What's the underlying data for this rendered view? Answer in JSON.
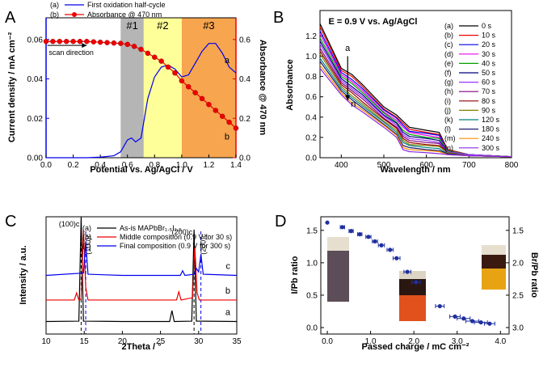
{
  "chart_data": [
    {
      "type": "line",
      "panel_label": "A",
      "xlabel": "Potential vs. Ag/AgCl / V",
      "ylabel": "Current density / mA cm⁻²",
      "y2label": "Absorbance @ 470 nm",
      "xlim": [
        0,
        1.4
      ],
      "ylim": [
        0,
        0.071
      ],
      "y2lim": [
        0,
        0.71
      ],
      "xticks": [
        {
          "value": 0,
          "label": "0.0"
        },
        0.2,
        0.4,
        0.6,
        0.8,
        {
          "value": 1,
          "label": "1.0"
        },
        1.2,
        1.4
      ],
      "yticks": [
        {
          "value": 0,
          "label": "0.00"
        },
        {
          "value": 0.02,
          "label": "0.02"
        },
        {
          "value": 0.04,
          "label": "0.04"
        },
        {
          "value": 0.06,
          "label": "0.06"
        }
      ],
      "y2ticks": [
        {
          "value": 0,
          "label": "0.0"
        },
        0.2,
        0.4,
        0.6
      ],
      "regions": [
        {
          "label": "#1",
          "from": 0.55,
          "to": 0.72,
          "color": "#b5b5b5"
        },
        {
          "label": "#2",
          "from": 0.72,
          "to": 1.0,
          "color": "#ffff99"
        },
        {
          "label": "#3",
          "from": 1.0,
          "to": 1.4,
          "color": "#f7a54f"
        }
      ],
      "annotations": [
        "scan direction"
      ],
      "series": [
        {
          "name": "First oxidation half-cycle",
          "label": "(a)",
          "curve_label": "a",
          "color": "#0000ee",
          "axis": "y",
          "x": [
            0,
            0.1,
            0.2,
            0.3,
            0.4,
            0.5,
            0.55,
            0.6,
            0.63,
            0.66,
            0.7,
            0.75,
            0.8,
            0.85,
            0.9,
            0.95,
            1.0,
            1.05,
            1.1,
            1.15,
            1.2,
            1.25,
            1.3,
            1.35,
            1.4
          ],
          "values": [
            0,
            0,
            0,
            0,
            0.0003,
            0.001,
            0.003,
            0.009,
            0.01,
            0.008,
            0.01,
            0.03,
            0.041,
            0.046,
            0.047,
            0.045,
            0.041,
            0.042,
            0.048,
            0.054,
            0.058,
            0.058,
            0.053,
            0.046,
            0.043
          ]
        },
        {
          "name": "Absorbance @ 470 nm",
          "label": "(b)",
          "curve_label": "b",
          "color": "#ee0000",
          "axis": "y2",
          "marker": "circle",
          "x": [
            0,
            0.05,
            0.1,
            0.15,
            0.2,
            0.25,
            0.3,
            0.35,
            0.4,
            0.45,
            0.5,
            0.55,
            0.6,
            0.65,
            0.7,
            0.75,
            0.8,
            0.85,
            0.9,
            0.95,
            1.0,
            1.05,
            1.1,
            1.15,
            1.2,
            1.25,
            1.3,
            1.35,
            1.4
          ],
          "values": [
            0.59,
            0.59,
            0.59,
            0.59,
            0.59,
            0.59,
            0.59,
            0.588,
            0.586,
            0.584,
            0.582,
            0.58,
            0.575,
            0.565,
            0.55,
            0.53,
            0.51,
            0.49,
            0.46,
            0.43,
            0.39,
            0.36,
            0.33,
            0.3,
            0.27,
            0.24,
            0.21,
            0.18,
            0.15
          ]
        }
      ]
    },
    {
      "type": "line",
      "panel_label": "B",
      "title": "E = 0.9 V vs. Ag/AgCl",
      "xlabel": "Wavelength / nm",
      "ylabel": "Absorbance",
      "xlim": [
        350,
        800
      ],
      "ylim": [
        0,
        1.45
      ],
      "xticks": [
        400,
        500,
        600,
        700,
        800
      ],
      "yticks": [
        {
          "value": 0,
          "label": "0.0"
        },
        0.2,
        0.4,
        0.6,
        0.8,
        {
          "value": 1,
          "label": "1.0"
        },
        1.2
      ],
      "annotations": [
        "a",
        "n"
      ],
      "x": [
        350,
        400,
        425,
        450,
        500,
        530,
        545,
        560,
        600,
        630,
        650,
        700,
        800
      ],
      "series": [
        {
          "name": "0 s",
          "label": "(a)",
          "color": "#000000",
          "values": [
            1.32,
            0.88,
            0.82,
            0.72,
            0.5,
            0.42,
            0.36,
            0.3,
            0.27,
            0.25,
            0.08,
            0.03,
            0.01
          ]
        },
        {
          "name": "10 s",
          "label": "(b)",
          "color": "#ee0000",
          "values": [
            1.29,
            0.86,
            0.8,
            0.7,
            0.48,
            0.4,
            0.34,
            0.28,
            0.25,
            0.23,
            0.08,
            0.03,
            0.01
          ]
        },
        {
          "name": "20 s",
          "label": "(c)",
          "color": "#0000ee",
          "values": [
            1.25,
            0.84,
            0.77,
            0.68,
            0.47,
            0.39,
            0.32,
            0.26,
            0.24,
            0.22,
            0.07,
            0.03,
            0.01
          ]
        },
        {
          "name": "30 s",
          "label": "(d)",
          "color": "#ee00ee",
          "values": [
            1.22,
            0.82,
            0.75,
            0.66,
            0.45,
            0.37,
            0.3,
            0.25,
            0.22,
            0.2,
            0.07,
            0.03,
            0.01
          ]
        },
        {
          "name": "40 s",
          "label": "(e)",
          "color": "#00a000",
          "values": [
            1.18,
            0.8,
            0.73,
            0.64,
            0.44,
            0.35,
            0.27,
            0.23,
            0.2,
            0.19,
            0.07,
            0.03,
            0.01
          ]
        },
        {
          "name": "50 s",
          "label": "(f)",
          "color": "#000080",
          "values": [
            1.15,
            0.78,
            0.7,
            0.62,
            0.42,
            0.34,
            0.25,
            0.21,
            0.19,
            0.17,
            0.06,
            0.03,
            0.01
          ]
        },
        {
          "name": "60 s",
          "label": "(g)",
          "color": "#9933ff",
          "values": [
            1.12,
            0.76,
            0.68,
            0.6,
            0.41,
            0.32,
            0.23,
            0.19,
            0.17,
            0.15,
            0.06,
            0.03,
            0.01
          ]
        },
        {
          "name": "70 s",
          "label": "(h)",
          "color": "#800080",
          "values": [
            1.08,
            0.74,
            0.66,
            0.58,
            0.39,
            0.3,
            0.21,
            0.17,
            0.15,
            0.14,
            0.05,
            0.02,
            0.01
          ]
        },
        {
          "name": "80 s",
          "label": "(i)",
          "color": "#990000",
          "values": [
            1.05,
            0.72,
            0.64,
            0.55,
            0.38,
            0.29,
            0.19,
            0.15,
            0.13,
            0.12,
            0.05,
            0.02,
            0.01
          ]
        },
        {
          "name": "90 s",
          "label": "(j)",
          "color": "#808000",
          "values": [
            1.02,
            0.7,
            0.61,
            0.53,
            0.36,
            0.27,
            0.17,
            0.13,
            0.12,
            0.11,
            0.05,
            0.02,
            0.01
          ]
        },
        {
          "name": "120 s",
          "label": "(k)",
          "color": "#008080",
          "values": [
            0.98,
            0.68,
            0.59,
            0.51,
            0.35,
            0.25,
            0.15,
            0.12,
            0.1,
            0.09,
            0.04,
            0.02,
            0.01
          ]
        },
        {
          "name": "180 s",
          "label": "(l)",
          "color": "#1a1a6e",
          "values": [
            0.95,
            0.66,
            0.57,
            0.49,
            0.33,
            0.23,
            0.12,
            0.1,
            0.08,
            0.07,
            0.04,
            0.02,
            0.01
          ]
        },
        {
          "name": "240 s",
          "label": "(m)",
          "color": "#ff8c00",
          "values": [
            0.91,
            0.64,
            0.54,
            0.47,
            0.32,
            0.22,
            0.1,
            0.08,
            0.07,
            0.06,
            0.03,
            0.02,
            0.01
          ]
        },
        {
          "name": "300 s",
          "label": "(n)",
          "color": "#8a2be2",
          "values": [
            0.88,
            0.62,
            0.52,
            0.45,
            0.3,
            0.2,
            0.08,
            0.06,
            0.05,
            0.04,
            0.03,
            0.02,
            0.01
          ]
        }
      ]
    },
    {
      "type": "line",
      "panel_label": "C",
      "xlabel": "2Theta / °",
      "ylabel": "Intensity / a.u.",
      "xlim": [
        10,
        35
      ],
      "ylim": [
        0,
        10
      ],
      "xticks": [
        10,
        15,
        20,
        25,
        30,
        35
      ],
      "reference_lines": [
        {
          "x": 14.6,
          "color": "#000000",
          "label": "(100)c"
        },
        {
          "x": 15.2,
          "color": "#0000ee",
          "label": "(100)c"
        },
        {
          "x": 29.4,
          "color": "#000000",
          "label": "(200)c"
        },
        {
          "x": 30.3,
          "color": "#0000ee",
          "label": "(200)c"
        }
      ],
      "series": [
        {
          "name": "As-is MAPbBr₁.₅I₁.₅",
          "label": "(a)",
          "curve_label": "a",
          "color": "#000000",
          "x": [
            10,
            14.3,
            14.6,
            14.9,
            20,
            26.2,
            26.5,
            26.8,
            29.1,
            29.4,
            29.7,
            35
          ],
          "values": [
            1.07,
            1.1,
            10,
            1.1,
            1.07,
            1.07,
            2.0,
            1.07,
            1.1,
            8.9,
            1.1,
            1.07
          ]
        },
        {
          "name": "Middle composition (0.9 V for 30 s)",
          "label": "(b)",
          "curve_label": "b",
          "color": "#ee0000",
          "x": [
            10,
            13.7,
            14.0,
            14.3,
            14.6,
            14.9,
            15.2,
            15.5,
            20,
            27.1,
            27.4,
            27.7,
            29.2,
            29.5,
            29.8,
            30.1,
            35
          ],
          "values": [
            2.9,
            2.9,
            3.5,
            2.9,
            3.0,
            8.9,
            4.0,
            2.9,
            2.9,
            2.9,
            3.6,
            2.9,
            3.1,
            7.5,
            3.5,
            2.9,
            2.9
          ]
        },
        {
          "name": "Final composition (0.9 V for 300 s)",
          "label": "(c)",
          "curve_label": "c",
          "color": "#0000ee",
          "x": [
            10,
            14.9,
            15.2,
            15.5,
            20,
            27.6,
            27.9,
            28.2,
            29.4,
            29.7,
            30.0,
            30.3,
            30.6,
            35
          ],
          "values": [
            5.0,
            5.2,
            7.9,
            5.1,
            5.0,
            5.0,
            5.4,
            5.0,
            5.1,
            5.6,
            5.3,
            6.8,
            5.1,
            5.0
          ]
        }
      ]
    },
    {
      "type": "scatter",
      "panel_label": "D",
      "xlabel": "Passed charge / mC cm⁻²",
      "ylabel": "I/Pb ratio",
      "y2label": "Br/Pb ratio",
      "xlim": [
        -0.15,
        4.2
      ],
      "ylim": [
        -0.1,
        1.71
      ],
      "y2lim": [
        3.1,
        1.29
      ],
      "xticks": [
        {
          "value": 0,
          "label": "0.0"
        },
        {
          "value": 1,
          "label": "1.0"
        },
        {
          "value": 2,
          "label": "2.0"
        },
        {
          "value": 3,
          "label": "3.0"
        },
        {
          "value": 4,
          "label": "4.0"
        }
      ],
      "yticks": [
        {
          "value": 0,
          "label": "0.0"
        },
        0.5,
        {
          "value": 1,
          "label": "1.0"
        },
        1.5
      ],
      "y2ticks": [
        1.5,
        {
          "value": 2,
          "label": "2.0"
        },
        2.5,
        {
          "value": 3,
          "label": "3.0"
        }
      ],
      "color": "#1f2f9f",
      "x": [
        0,
        0.35,
        0.55,
        0.75,
        0.95,
        1.1,
        1.25,
        1.45,
        1.6,
        1.85,
        2.05,
        2.6,
        2.95,
        3.15,
        3.35,
        3.55,
        3.75
      ],
      "values": [
        1.62,
        1.55,
        1.49,
        1.44,
        1.4,
        1.33,
        1.27,
        1.2,
        1.07,
        0.86,
        0.7,
        0.33,
        0.17,
        0.14,
        0.1,
        0.08,
        0.06
      ],
      "xerr": [
        0,
        0.05,
        0.05,
        0.05,
        0.06,
        0.06,
        0.07,
        0.07,
        0.08,
        0.08,
        0.1,
        0.1,
        0.12,
        0.15,
        0.15,
        0.15,
        0.12
      ]
    }
  ]
}
